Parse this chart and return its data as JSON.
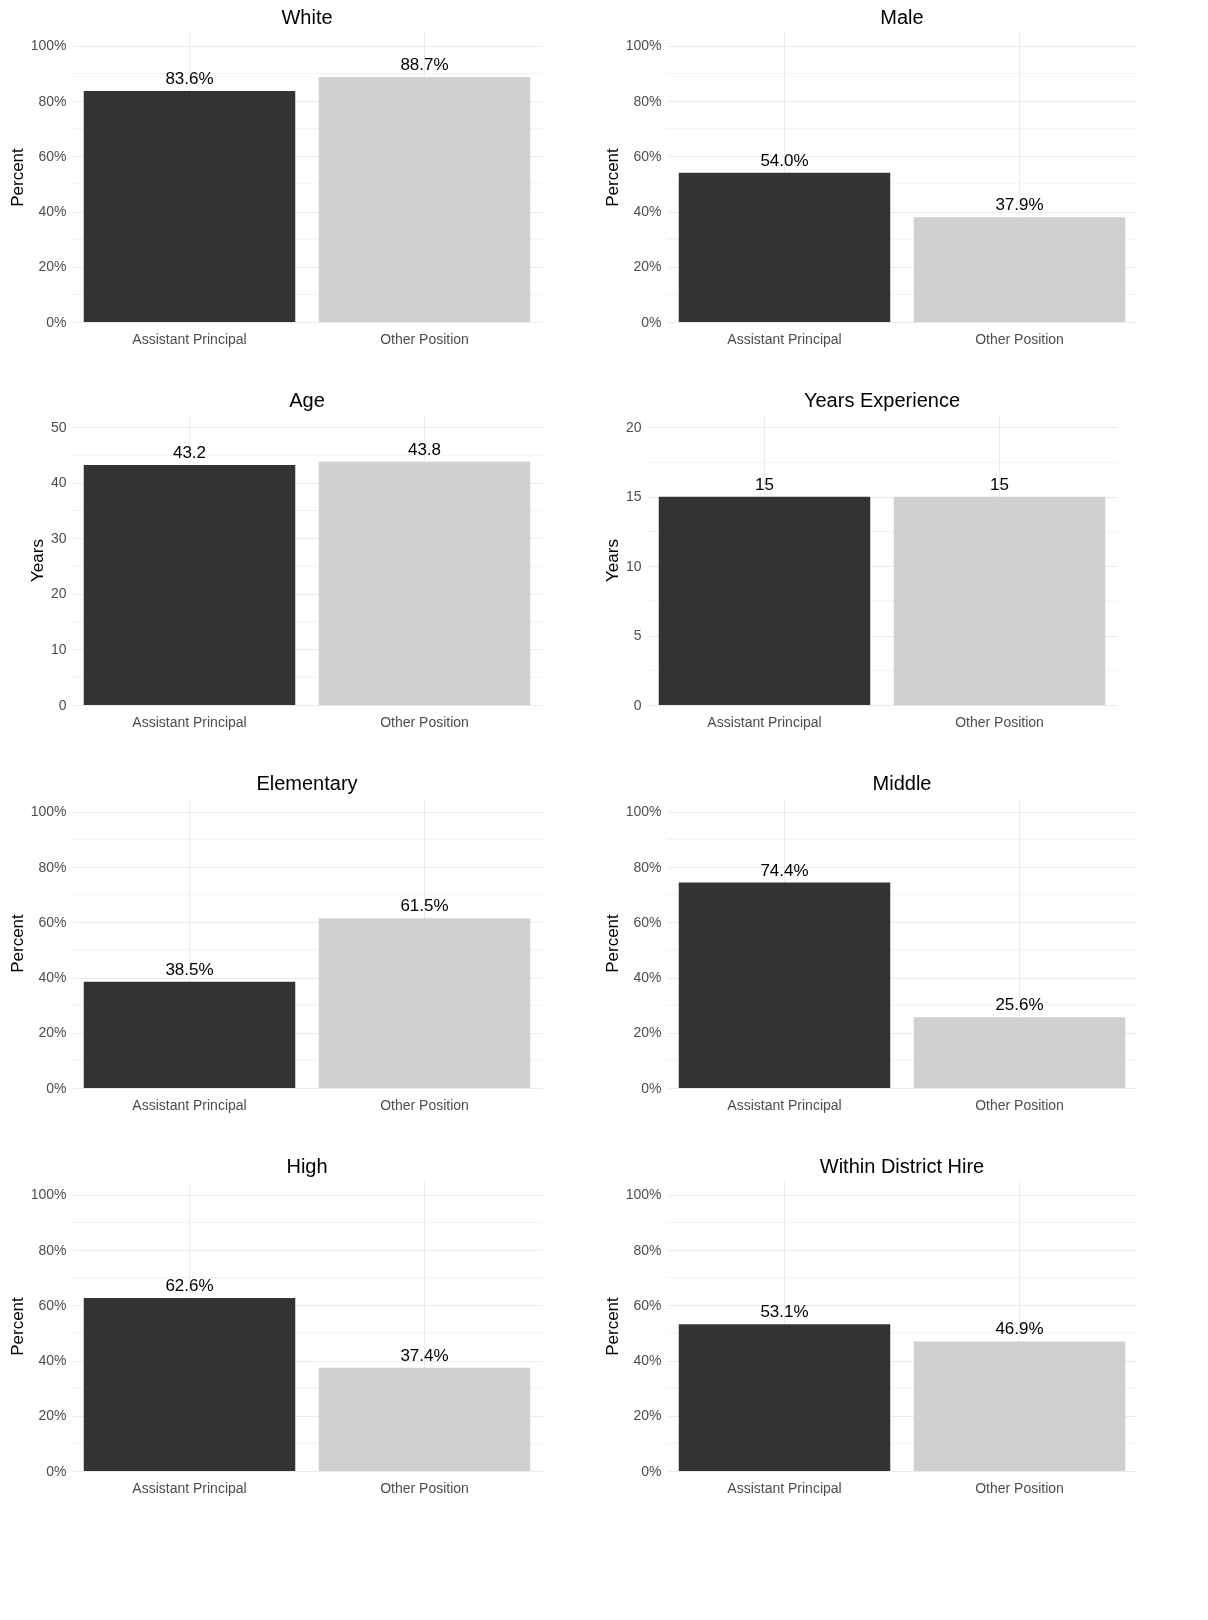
{
  "chart_data": [
    {
      "type": "bar",
      "title": "White",
      "ylabel": "Percent",
      "categories": [
        "Assistant Principal",
        "Other Position"
      ],
      "values": [
        83.6,
        88.7
      ],
      "colors": [
        "#333333",
        "#d0d0d0"
      ],
      "value_labels": [
        "83.6%",
        "88.7%"
      ],
      "ylim": [
        0,
        105
      ],
      "yticks": [
        {
          "value": 0,
          "label": "0%"
        },
        {
          "value": 10,
          "label": null
        },
        {
          "value": 20,
          "label": "20%"
        },
        {
          "value": 30,
          "label": null
        },
        {
          "value": 40,
          "label": "40%"
        },
        {
          "value": 50,
          "label": null
        },
        {
          "value": 60,
          "label": "60%"
        },
        {
          "value": 70,
          "label": null
        },
        {
          "value": 80,
          "label": "80%"
        },
        {
          "value": 90,
          "label": null
        },
        {
          "value": 100,
          "label": "100%"
        }
      ],
      "grid": true
    },
    {
      "type": "bar",
      "title": "Male",
      "ylabel": "Percent",
      "categories": [
        "Assistant Principal",
        "Other Position"
      ],
      "values": [
        54.0,
        37.9
      ],
      "colors": [
        "#333333",
        "#d0d0d0"
      ],
      "value_labels": [
        "54.0%",
        "37.9%"
      ],
      "ylim": [
        0,
        105
      ],
      "yticks": [
        {
          "value": 0,
          "label": "0%"
        },
        {
          "value": 10,
          "label": null
        },
        {
          "value": 20,
          "label": "20%"
        },
        {
          "value": 30,
          "label": null
        },
        {
          "value": 40,
          "label": "40%"
        },
        {
          "value": 50,
          "label": null
        },
        {
          "value": 60,
          "label": "60%"
        },
        {
          "value": 70,
          "label": null
        },
        {
          "value": 80,
          "label": "80%"
        },
        {
          "value": 90,
          "label": null
        },
        {
          "value": 100,
          "label": "100%"
        }
      ],
      "grid": true
    },
    {
      "type": "bar",
      "title": "Age",
      "ylabel": "Years",
      "categories": [
        "Assistant Principal",
        "Other Position"
      ],
      "values": [
        43.2,
        43.8
      ],
      "colors": [
        "#333333",
        "#d0d0d0"
      ],
      "value_labels": [
        "43.2",
        "43.8"
      ],
      "ylim": [
        0,
        52.2
      ],
      "yticks": [
        0,
        {
          "value": 5,
          "label": null
        },
        10,
        {
          "value": 15,
          "label": null
        },
        20,
        {
          "value": 25,
          "label": null
        },
        30,
        {
          "value": 35,
          "label": null
        },
        40,
        {
          "value": 45,
          "label": null
        },
        50
      ],
      "grid": true
    },
    {
      "type": "bar",
      "title": "Years Experience",
      "ylabel": "Years",
      "categories": [
        "Assistant Principal",
        "Other Position"
      ],
      "values": [
        15,
        15
      ],
      "colors": [
        "#333333",
        "#d0d0d0"
      ],
      "value_labels": [
        "15",
        "15"
      ],
      "ylim": [
        0,
        20.9
      ],
      "yticks": [
        0,
        {
          "value": 2.5,
          "label": null
        },
        5,
        {
          "value": 7.5,
          "label": null
        },
        10,
        {
          "value": 12.5,
          "label": null
        },
        15,
        {
          "value": 17.5,
          "label": null
        },
        20
      ],
      "grid": true
    },
    {
      "type": "bar",
      "title": "Elementary",
      "ylabel": "Percent",
      "categories": [
        "Assistant Principal",
        "Other Position"
      ],
      "values": [
        38.5,
        61.5
      ],
      "colors": [
        "#333333",
        "#d0d0d0"
      ],
      "value_labels": [
        "38.5%",
        "61.5%"
      ],
      "ylim": [
        0,
        105
      ],
      "yticks": [
        {
          "value": 0,
          "label": "0%"
        },
        {
          "value": 10,
          "label": null
        },
        {
          "value": 20,
          "label": "20%"
        },
        {
          "value": 30,
          "label": null
        },
        {
          "value": 40,
          "label": "40%"
        },
        {
          "value": 50,
          "label": null
        },
        {
          "value": 60,
          "label": "60%"
        },
        {
          "value": 70,
          "label": null
        },
        {
          "value": 80,
          "label": "80%"
        },
        {
          "value": 90,
          "label": null
        },
        {
          "value": 100,
          "label": "100%"
        }
      ],
      "grid": true
    },
    {
      "type": "bar",
      "title": "Middle",
      "ylabel": "Percent",
      "categories": [
        "Assistant Principal",
        "Other Position"
      ],
      "values": [
        74.4,
        25.6
      ],
      "colors": [
        "#333333",
        "#d0d0d0"
      ],
      "value_labels": [
        "74.4%",
        "25.6%"
      ],
      "ylim": [
        0,
        105
      ],
      "yticks": [
        {
          "value": 0,
          "label": "0%"
        },
        {
          "value": 10,
          "label": null
        },
        {
          "value": 20,
          "label": "20%"
        },
        {
          "value": 30,
          "label": null
        },
        {
          "value": 40,
          "label": "40%"
        },
        {
          "value": 50,
          "label": null
        },
        {
          "value": 60,
          "label": "60%"
        },
        {
          "value": 70,
          "label": null
        },
        {
          "value": 80,
          "label": "80%"
        },
        {
          "value": 90,
          "label": null
        },
        {
          "value": 100,
          "label": "100%"
        }
      ],
      "grid": true
    },
    {
      "type": "bar",
      "title": "High",
      "ylabel": "Percent",
      "categories": [
        "Assistant Principal",
        "Other Position"
      ],
      "values": [
        62.6,
        37.4
      ],
      "colors": [
        "#333333",
        "#d0d0d0"
      ],
      "value_labels": [
        "62.6%",
        "37.4%"
      ],
      "ylim": [
        0,
        105
      ],
      "yticks": [
        {
          "value": 0,
          "label": "0%"
        },
        {
          "value": 10,
          "label": null
        },
        {
          "value": 20,
          "label": "20%"
        },
        {
          "value": 30,
          "label": null
        },
        {
          "value": 40,
          "label": "40%"
        },
        {
          "value": 50,
          "label": null
        },
        {
          "value": 60,
          "label": "60%"
        },
        {
          "value": 70,
          "label": null
        },
        {
          "value": 80,
          "label": "80%"
        },
        {
          "value": 90,
          "label": null
        },
        {
          "value": 100,
          "label": "100%"
        }
      ],
      "grid": true
    },
    {
      "type": "bar",
      "title": "Within District Hire",
      "ylabel": "Percent",
      "categories": [
        "Assistant Principal",
        "Other Position"
      ],
      "values": [
        53.1,
        46.9
      ],
      "colors": [
        "#333333",
        "#d0d0d0"
      ],
      "value_labels": [
        "53.1%",
        "46.9%"
      ],
      "ylim": [
        0,
        105
      ],
      "yticks": [
        {
          "value": 0,
          "label": "0%"
        },
        {
          "value": 10,
          "label": null
        },
        {
          "value": 20,
          "label": "20%"
        },
        {
          "value": 30,
          "label": null
        },
        {
          "value": 40,
          "label": "40%"
        },
        {
          "value": 50,
          "label": null
        },
        {
          "value": 60,
          "label": "60%"
        },
        {
          "value": 70,
          "label": null
        },
        {
          "value": 80,
          "label": "80%"
        },
        {
          "value": 90,
          "label": null
        },
        {
          "value": 100,
          "label": "100%"
        }
      ],
      "grid": true
    }
  ]
}
